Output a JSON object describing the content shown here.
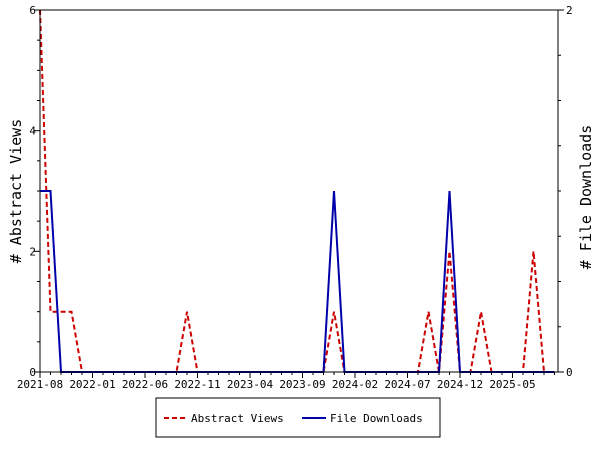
{
  "chart_data": {
    "type": "line",
    "title": "",
    "xlabel": "",
    "ylabel": "# Abstract Views",
    "y2label": "# File Downloads",
    "ylim": [
      0,
      6
    ],
    "y2lim": [
      0,
      2
    ],
    "yticks": [
      "0",
      "2",
      "4",
      "6"
    ],
    "y2ticks": [
      "0",
      "2"
    ],
    "grid": false,
    "legend_position": "bottom",
    "x_tick_labels": [
      "2021-08",
      "2022-01",
      "2022-06",
      "2022-11",
      "2023-04",
      "2023-09",
      "2024-02",
      "2024-07",
      "2024-12",
      "2025-05"
    ],
    "x_months": [
      "2021-08",
      "2021-09",
      "2021-10",
      "2021-11",
      "2021-12",
      "2022-01",
      "2022-02",
      "2022-03",
      "2022-04",
      "2022-05",
      "2022-06",
      "2022-07",
      "2022-08",
      "2022-09",
      "2022-10",
      "2022-11",
      "2022-12",
      "2023-01",
      "2023-02",
      "2023-03",
      "2023-04",
      "2023-05",
      "2023-06",
      "2023-07",
      "2023-08",
      "2023-09",
      "2023-10",
      "2023-11",
      "2023-12",
      "2024-01",
      "2024-02",
      "2024-03",
      "2024-04",
      "2024-05",
      "2024-06",
      "2024-07",
      "2024-08",
      "2024-09",
      "2024-10",
      "2024-11",
      "2024-12",
      "2025-01",
      "2025-02",
      "2025-03",
      "2025-04",
      "2025-05",
      "2025-06",
      "2025-07",
      "2025-08",
      "2025-09"
    ],
    "series": [
      {
        "name": "Abstract Views",
        "axis": "left",
        "color": "#cc0000",
        "dash": "dashed",
        "values": [
          6,
          1,
          1,
          1,
          0,
          0,
          0,
          0,
          0,
          0,
          0,
          0,
          0,
          0,
          1,
          0,
          0,
          0,
          0,
          0,
          0,
          0,
          0,
          0,
          0,
          0,
          0,
          0,
          1,
          0,
          0,
          0,
          0,
          0,
          0,
          0,
          0,
          1,
          0,
          2,
          0,
          0,
          1,
          0,
          0,
          0,
          0,
          2,
          0,
          0
        ]
      },
      {
        "name": "File Downloads",
        "axis": "right",
        "color": "#0000aa",
        "dash": "solid",
        "values": [
          1,
          1,
          0,
          0,
          0,
          0,
          0,
          0,
          0,
          0,
          0,
          0,
          0,
          0,
          0,
          0,
          0,
          0,
          0,
          0,
          0,
          0,
          0,
          0,
          0,
          0,
          0,
          0,
          1,
          0,
          0,
          0,
          0,
          0,
          0,
          0,
          0,
          0,
          0,
          1,
          0,
          0,
          0,
          0,
          0,
          0,
          0,
          0,
          0,
          0
        ]
      }
    ]
  },
  "legend": {
    "items": [
      {
        "label": "Abstract Views",
        "color": "#cc0000",
        "dash": "dashed"
      },
      {
        "label": "File Downloads",
        "color": "#0000aa",
        "dash": "solid"
      }
    ]
  }
}
